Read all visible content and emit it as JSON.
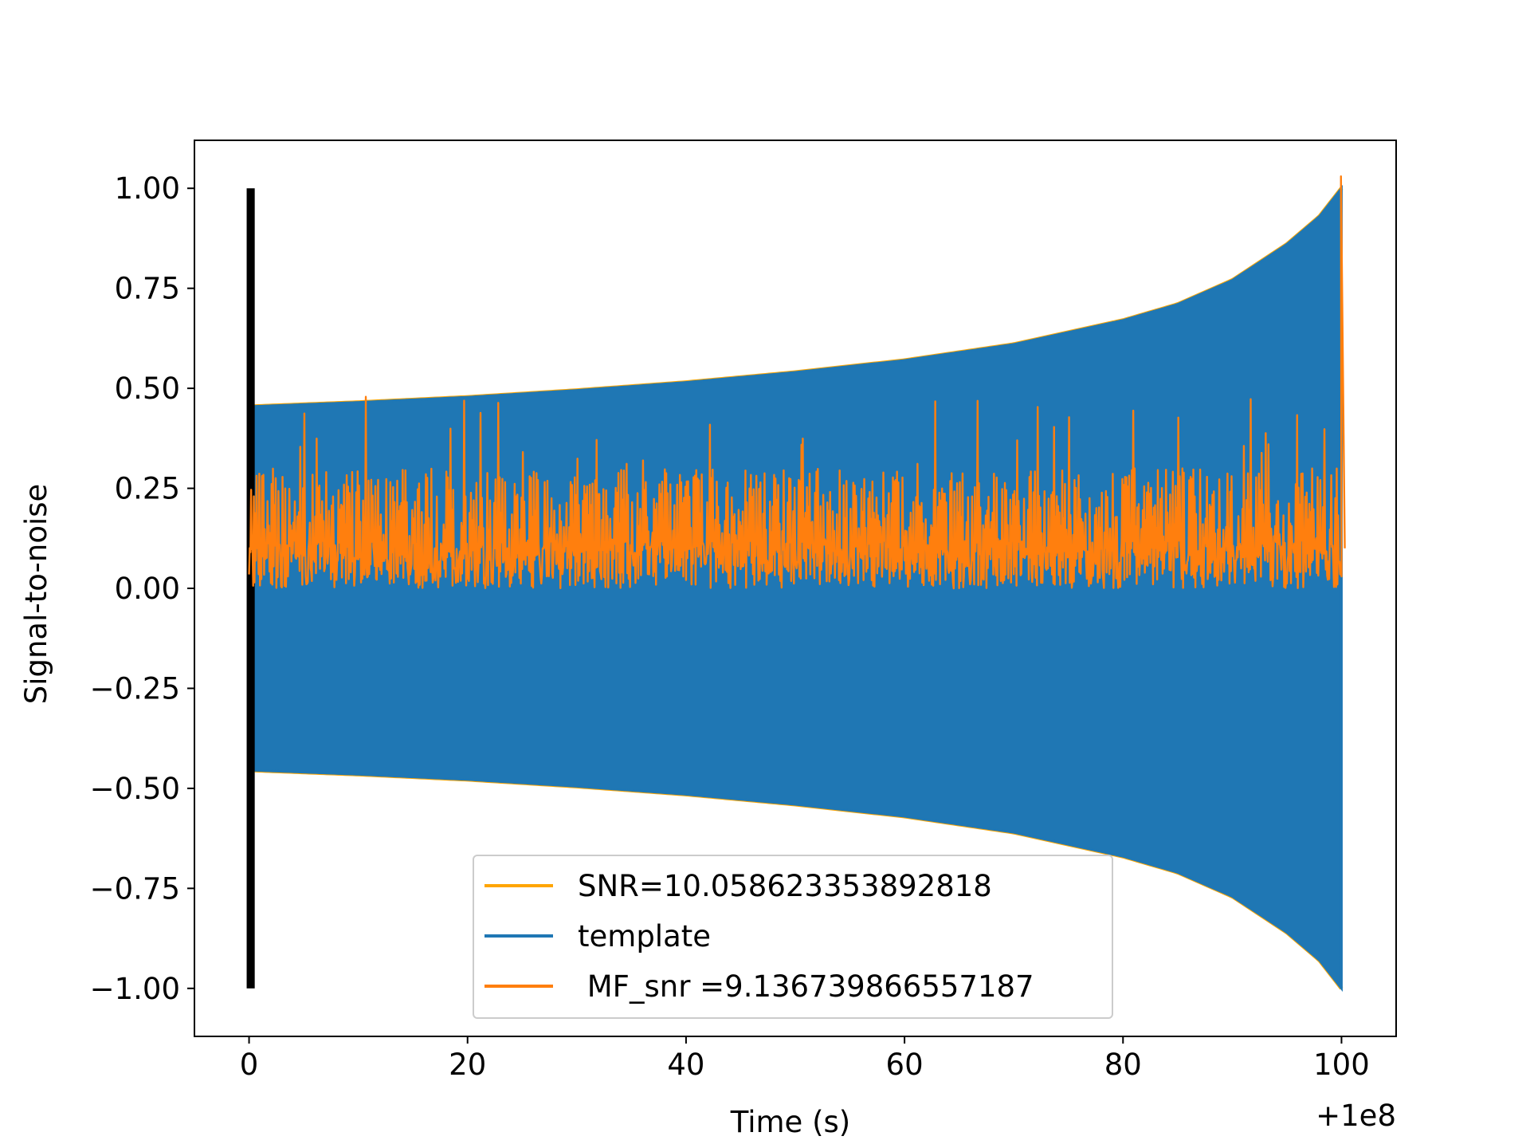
{
  "chart_data": {
    "type": "line",
    "title": "",
    "xlabel": "Time (s)",
    "ylabel": "Signal-to-noise",
    "x_offset_label": "+1e8",
    "xlim": [
      -5,
      105
    ],
    "ylim": [
      -1.12,
      1.12
    ],
    "x_ticks": [
      0,
      20,
      40,
      60,
      80,
      100
    ],
    "x_tick_labels": [
      "0",
      "20",
      "40",
      "60",
      "80",
      "100"
    ],
    "y_ticks": [
      1.0,
      0.75,
      0.5,
      0.25,
      0.0,
      -0.25,
      -0.5,
      -0.75,
      -1.0
    ],
    "y_tick_labels": [
      "1.00",
      "0.75",
      "0.50",
      "0.25",
      "0.00",
      "−0.25",
      "−0.50",
      "−0.75",
      "−1.00"
    ],
    "grid": false,
    "legend_position": "lower center",
    "series": [
      {
        "name": "SNR=10.058623353892818",
        "color": "#ffa500",
        "kind": "envelope",
        "x": [
          0.5,
          10,
          20,
          30,
          40,
          50,
          60,
          70,
          80,
          85,
          90,
          95,
          98,
          100
        ],
        "upper": [
          0.455,
          0.465,
          0.478,
          0.495,
          0.515,
          0.54,
          0.57,
          0.61,
          0.67,
          0.71,
          0.77,
          0.86,
          0.93,
          1.0
        ],
        "lower": [
          -0.455,
          -0.465,
          -0.478,
          -0.495,
          -0.515,
          -0.54,
          -0.57,
          -0.61,
          -0.67,
          -0.71,
          -0.77,
          -0.86,
          -0.93,
          -1.0
        ]
      },
      {
        "name": "template",
        "color": "#1f77b4",
        "kind": "oscillation",
        "x": [
          0.5,
          10,
          20,
          30,
          40,
          50,
          60,
          70,
          80,
          85,
          90,
          95,
          98,
          100
        ],
        "upper": [
          0.455,
          0.465,
          0.478,
          0.495,
          0.515,
          0.54,
          0.57,
          0.61,
          0.67,
          0.71,
          0.77,
          0.86,
          0.93,
          1.0
        ],
        "lower": [
          -0.455,
          -0.465,
          -0.478,
          -0.495,
          -0.515,
          -0.54,
          -0.57,
          -0.61,
          -0.67,
          -0.71,
          -0.77,
          -0.86,
          -0.93,
          -1.0
        ],
        "start_spike": [
          -1.0,
          1.0
        ]
      },
      {
        "name": " MF_snr =9.136739866557187",
        "color": "#ff7f0e",
        "kind": "noise",
        "x_range": [
          0,
          100
        ],
        "baseline": 0.0,
        "typical_max": 0.3,
        "spike_max": 0.48,
        "peak": {
          "x": 99.95,
          "y": 1.03
        }
      }
    ]
  }
}
